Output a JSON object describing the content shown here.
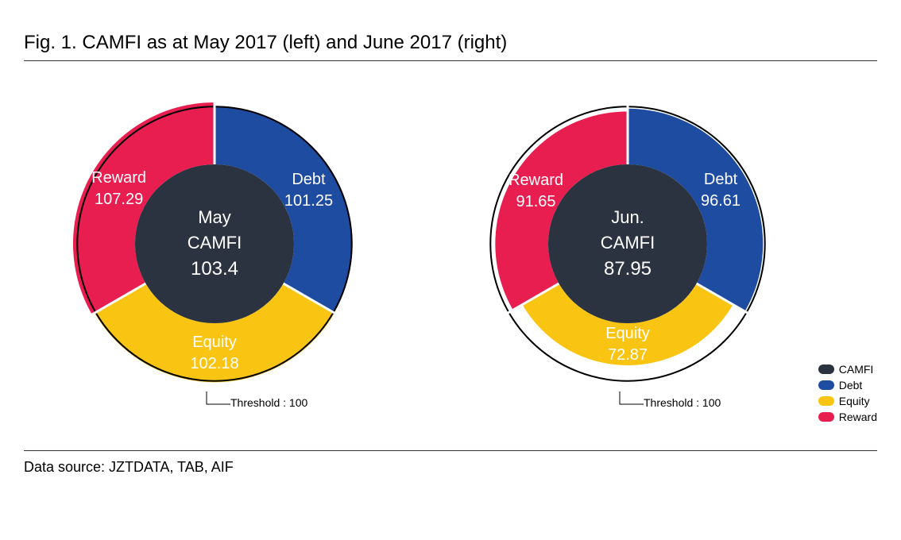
{
  "title": "Fig. 1. CAMFI as at May 2017 (left) and June 2017 (right)",
  "footer": "Data source: JZTDATA, TAB, AIF",
  "threshold": {
    "label": "Threshold : 100",
    "value": 100
  },
  "legend": [
    {
      "name": "CAMFI",
      "color": "#2c3340"
    },
    {
      "name": "Debt",
      "color": "#1e4ca1"
    },
    {
      "name": "Equity",
      "color": "#f9c412"
    },
    {
      "name": "Reward",
      "color": "#e91e50"
    }
  ],
  "chart": {
    "type": "radial-gauge-pie",
    "outer_radius": 180,
    "inner_radius": 100,
    "ring_stroke_color": "#000000",
    "ring_stroke_width": 2,
    "background_color": "#ffffff",
    "center_fill": "#2c3340",
    "label_color": "#ffffff",
    "label_fontsize": 20,
    "center_fontsize": 22,
    "scale_max": 110,
    "slices": [
      {
        "key": "debt",
        "name": "Debt",
        "color": "#1e4ca1",
        "start_deg": 0,
        "end_deg": 120
      },
      {
        "key": "equity",
        "name": "Equity",
        "color": "#f9c412",
        "start_deg": 120,
        "end_deg": 240
      },
      {
        "key": "reward",
        "name": "Reward",
        "color": "#e91e50",
        "start_deg": 240,
        "end_deg": 360
      }
    ]
  },
  "panels": [
    {
      "id": "may",
      "center": {
        "month": "May",
        "name": "CAMFI",
        "value": "103.4"
      },
      "values": {
        "debt": 101.25,
        "equity": 102.18,
        "reward": 107.29
      }
    },
    {
      "id": "jun",
      "center": {
        "month": "Jun.",
        "name": "CAMFI",
        "value": "87.95"
      },
      "values": {
        "debt": 96.61,
        "equity": 72.87,
        "reward": 91.65
      }
    }
  ]
}
